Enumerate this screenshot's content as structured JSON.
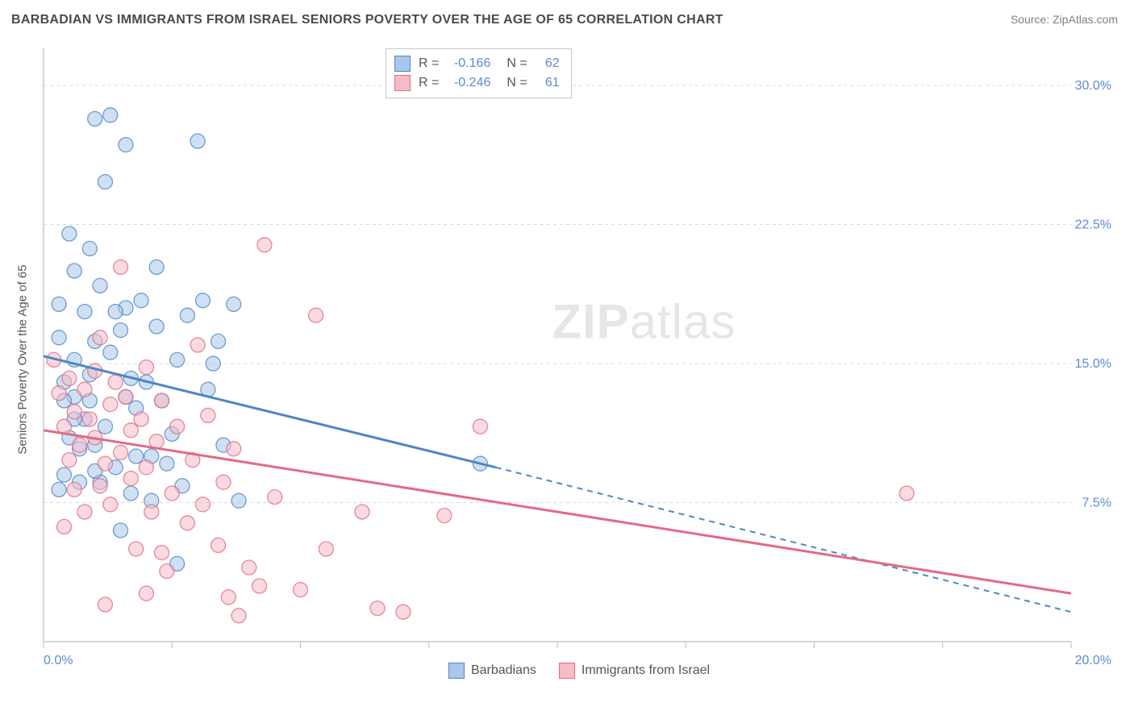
{
  "header": {
    "title": "BARBADIAN VS IMMIGRANTS FROM ISRAEL SENIORS POVERTY OVER THE AGE OF 65 CORRELATION CHART",
    "source": "Source: ZipAtlas.com"
  },
  "watermark": {
    "bold": "ZIP",
    "rest": "atlas"
  },
  "chart": {
    "type": "scatter",
    "ylabel": "Seniors Poverty Over the Age of 65",
    "background_color": "#ffffff",
    "grid_color": "#d9d9d9",
    "axis_color": "#bfbfbf",
    "axis_font_color": "#5b8bd4",
    "xlim": [
      0,
      20
    ],
    "ylim": [
      0,
      32
    ],
    "x_ticks": [
      0,
      2.5,
      5,
      7.5,
      10,
      12.5,
      15,
      17.5,
      20
    ],
    "x_tick_labels": {
      "0": "0.0%",
      "20": "20.0%"
    },
    "y_grid": [
      7.5,
      15.0,
      22.5,
      30.0
    ],
    "y_tick_labels": [
      "7.5%",
      "15.0%",
      "22.5%",
      "30.0%"
    ],
    "marker_radius": 9,
    "marker_opacity": 0.55,
    "line_width": 3,
    "series": [
      {
        "name": "Barbadians",
        "color_fill": "#a9c7ea",
        "color_stroke": "#4f86c6",
        "R": "-0.166",
        "N": "62",
        "trend": {
          "solid": {
            "x1": 0,
            "y1": 15.4,
            "x2": 8.8,
            "y2": 9.4
          },
          "dash": {
            "x1": 8.8,
            "y1": 9.4,
            "x2": 20,
            "y2": 1.6
          }
        },
        "points": [
          [
            0.3,
            18.2
          ],
          [
            0.5,
            22.0
          ],
          [
            0.4,
            14.0
          ],
          [
            0.6,
            13.2
          ],
          [
            0.6,
            20.0
          ],
          [
            0.8,
            17.8
          ],
          [
            0.9,
            21.2
          ],
          [
            1.0,
            28.2
          ],
          [
            1.3,
            28.4
          ],
          [
            1.2,
            24.8
          ],
          [
            1.0,
            16.2
          ],
          [
            0.9,
            14.4
          ],
          [
            0.8,
            12.0
          ],
          [
            0.7,
            10.4
          ],
          [
            1.1,
            19.2
          ],
          [
            1.3,
            15.6
          ],
          [
            1.5,
            16.8
          ],
          [
            1.6,
            18.0
          ],
          [
            1.6,
            26.8
          ],
          [
            1.7,
            14.2
          ],
          [
            1.8,
            12.6
          ],
          [
            1.9,
            18.4
          ],
          [
            2.0,
            14.0
          ],
          [
            2.1,
            10.0
          ],
          [
            2.2,
            20.2
          ],
          [
            2.3,
            13.0
          ],
          [
            2.5,
            11.2
          ],
          [
            2.6,
            15.2
          ],
          [
            2.7,
            8.4
          ],
          [
            2.8,
            17.6
          ],
          [
            3.0,
            27.0
          ],
          [
            3.1,
            18.4
          ],
          [
            3.2,
            13.6
          ],
          [
            3.3,
            15.0
          ],
          [
            3.4,
            16.2
          ],
          [
            3.5,
            10.6
          ],
          [
            3.7,
            18.2
          ],
          [
            3.8,
            7.6
          ],
          [
            0.3,
            8.2
          ],
          [
            0.4,
            9.0
          ],
          [
            0.5,
            11.0
          ],
          [
            0.6,
            15.2
          ],
          [
            0.4,
            13.0
          ],
          [
            0.7,
            8.6
          ],
          [
            0.9,
            13.0
          ],
          [
            1.0,
            10.6
          ],
          [
            1.1,
            8.6
          ],
          [
            1.2,
            11.6
          ],
          [
            1.4,
            9.4
          ],
          [
            1.5,
            6.0
          ],
          [
            1.8,
            10.0
          ],
          [
            1.6,
            13.2
          ],
          [
            2.2,
            17.0
          ],
          [
            2.4,
            9.6
          ],
          [
            2.6,
            4.2
          ],
          [
            1.4,
            17.8
          ],
          [
            0.3,
            16.4
          ],
          [
            0.6,
            12.0
          ],
          [
            1.0,
            9.2
          ],
          [
            1.7,
            8.0
          ],
          [
            2.1,
            7.6
          ],
          [
            8.5,
            9.6
          ]
        ]
      },
      {
        "name": "Immigrants from Israel",
        "color_fill": "#f4bcc7",
        "color_stroke": "#e26a85",
        "R": "-0.246",
        "N": "61",
        "trend": {
          "solid": {
            "x1": 0,
            "y1": 11.4,
            "x2": 20,
            "y2": 2.6
          },
          "dash": null
        },
        "points": [
          [
            0.2,
            15.2
          ],
          [
            0.3,
            13.4
          ],
          [
            0.4,
            11.6
          ],
          [
            0.5,
            9.8
          ],
          [
            0.5,
            14.2
          ],
          [
            0.6,
            12.4
          ],
          [
            0.6,
            8.2
          ],
          [
            0.7,
            10.6
          ],
          [
            0.8,
            13.6
          ],
          [
            0.8,
            7.0
          ],
          [
            0.9,
            12.0
          ],
          [
            1.0,
            14.6
          ],
          [
            1.0,
            11.0
          ],
          [
            1.1,
            8.4
          ],
          [
            1.1,
            16.4
          ],
          [
            1.2,
            9.6
          ],
          [
            1.3,
            12.8
          ],
          [
            1.3,
            7.4
          ],
          [
            1.4,
            14.0
          ],
          [
            1.5,
            10.2
          ],
          [
            1.5,
            20.2
          ],
          [
            1.6,
            13.2
          ],
          [
            1.7,
            8.8
          ],
          [
            1.7,
            11.4
          ],
          [
            1.8,
            5.0
          ],
          [
            1.9,
            12.0
          ],
          [
            2.0,
            9.4
          ],
          [
            2.0,
            14.8
          ],
          [
            2.1,
            7.0
          ],
          [
            2.2,
            10.8
          ],
          [
            2.3,
            13.0
          ],
          [
            2.3,
            4.8
          ],
          [
            2.5,
            8.0
          ],
          [
            2.6,
            11.6
          ],
          [
            2.8,
            6.4
          ],
          [
            2.9,
            9.8
          ],
          [
            3.0,
            16.0
          ],
          [
            3.1,
            7.4
          ],
          [
            3.2,
            12.2
          ],
          [
            3.4,
            5.2
          ],
          [
            3.5,
            8.6
          ],
          [
            3.7,
            10.4
          ],
          [
            3.8,
            1.4
          ],
          [
            4.0,
            4.0
          ],
          [
            4.3,
            21.4
          ],
          [
            4.5,
            7.8
          ],
          [
            5.0,
            2.8
          ],
          [
            5.3,
            17.6
          ],
          [
            5.5,
            5.0
          ],
          [
            6.2,
            7.0
          ],
          [
            6.5,
            1.8
          ],
          [
            7.0,
            1.6
          ],
          [
            7.8,
            6.8
          ],
          [
            8.5,
            11.6
          ],
          [
            1.2,
            2.0
          ],
          [
            2.0,
            2.6
          ],
          [
            2.4,
            3.8
          ],
          [
            3.6,
            2.4
          ],
          [
            4.2,
            3.0
          ],
          [
            16.8,
            8.0
          ],
          [
            0.4,
            6.2
          ]
        ]
      }
    ],
    "legend": {
      "items": [
        {
          "label": "Barbadians",
          "fill": "#a9c7ea",
          "stroke": "#4f86c6"
        },
        {
          "label": "Immigrants from Israel",
          "fill": "#f4bcc7",
          "stroke": "#e26a85"
        }
      ]
    }
  }
}
